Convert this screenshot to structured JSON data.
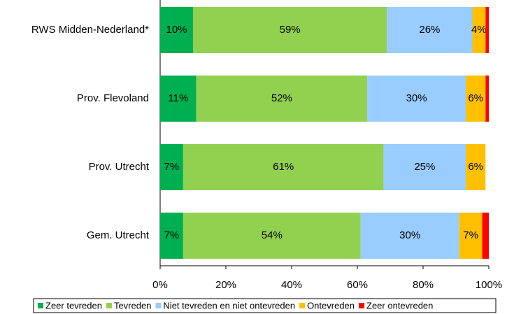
{
  "chart_data": {
    "type": "stacked_bar_horizontal",
    "categories": [
      "RWS Midden-Nederland*",
      "Prov. Flevoland",
      "Prov. Utrecht",
      "Gem. Utrecht"
    ],
    "series": [
      {
        "name": "Zeer tevreden",
        "color": "#00b050",
        "values": [
          10,
          11,
          7,
          7
        ],
        "value_labels": [
          "10%",
          "11%",
          "7%",
          "7%"
        ]
      },
      {
        "name": "Tevreden",
        "color": "#92d050",
        "values": [
          59,
          52,
          61,
          54
        ],
        "value_labels": [
          "59%",
          "52%",
          "61%",
          "54%"
        ]
      },
      {
        "name": "Niet tevreden en niet ontevreden",
        "color": "#99ccff",
        "values": [
          26,
          30,
          25,
          30
        ],
        "value_labels": [
          "26%",
          "30%",
          "25%",
          "30%"
        ]
      },
      {
        "name": "Ontevreden",
        "color": "#ffc000",
        "values": [
          4,
          6,
          6,
          7
        ],
        "value_labels": [
          "4%",
          "6%",
          "6%",
          "7%"
        ]
      },
      {
        "name": "Zeer ontevreden",
        "color": "#ff0000",
        "values": [
          1,
          1,
          0,
          2
        ],
        "value_labels": [
          null,
          null,
          null,
          null
        ]
      }
    ],
    "xlim": [
      0,
      100
    ],
    "xticks": [
      {
        "value": 0,
        "label": "0%"
      },
      {
        "value": 20,
        "label": "20%"
      },
      {
        "value": 40,
        "label": "40%"
      },
      {
        "value": 60,
        "label": "60%"
      },
      {
        "value": 80,
        "label": "80%"
      },
      {
        "value": 100,
        "label": "100%"
      }
    ],
    "legend": "bottom"
  }
}
